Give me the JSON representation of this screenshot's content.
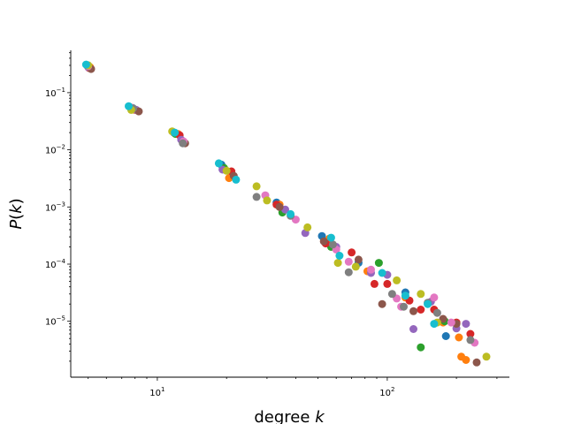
{
  "chart_data": {
    "type": "scatter",
    "title": "",
    "xlabel": "degree",
    "xlabel_var": "k",
    "ylabel_func": "P",
    "ylabel_var": "k",
    "x_scale": "log",
    "y_scale": "log",
    "xlim": [
      4.2,
      340
    ],
    "ylim": [
      1.05e-06,
      0.55
    ],
    "x_major_ticks": [
      {
        "value": 10,
        "base": "10",
        "exp": "1"
      },
      {
        "value": 100,
        "base": "10",
        "exp": "2"
      }
    ],
    "y_major_ticks": [
      {
        "value": 0.1,
        "base": "10",
        "exp": "−1"
      },
      {
        "value": 0.01,
        "base": "10",
        "exp": "−2"
      },
      {
        "value": 0.001,
        "base": "10",
        "exp": "−3"
      },
      {
        "value": 0.0001,
        "base": "10",
        "exp": "−4"
      },
      {
        "value": 1e-05,
        "base": "10",
        "exp": "−5"
      }
    ],
    "grid": false,
    "legend": "none",
    "series": [
      {
        "color": "#1f77b4",
        "points": [
          [
            5.0,
            0.29
          ],
          [
            7.8,
            0.054
          ],
          [
            11.8,
            0.02
          ],
          [
            19,
            0.0055
          ],
          [
            33,
            0.0012
          ],
          [
            52,
            0.00031
          ],
          [
            75,
            0.000105
          ],
          [
            120,
            3.2e-05
          ],
          [
            180,
            5.5e-06
          ]
        ]
      },
      {
        "color": "#ff7f0e",
        "points": [
          [
            5.1,
            0.28
          ],
          [
            8,
            0.05
          ],
          [
            12.3,
            0.019
          ],
          [
            20.5,
            0.0032
          ],
          [
            34,
            0.0011
          ],
          [
            56,
            0.00028
          ],
          [
            82,
            7.5e-05
          ],
          [
            120,
            2.6e-05
          ],
          [
            175,
            9.5e-06
          ],
          [
            205,
            5.2e-06
          ],
          [
            210,
            2.4e-06
          ],
          [
            220,
            2.1e-06
          ]
        ]
      },
      {
        "color": "#2ca02c",
        "points": [
          [
            5.0,
            0.3
          ],
          [
            7.6,
            0.056
          ],
          [
            12,
            0.019
          ],
          [
            19.5,
            0.0048
          ],
          [
            35,
            0.0008
          ],
          [
            57,
            0.0002
          ],
          [
            92,
            0.000105
          ],
          [
            140,
            3.5e-06
          ],
          [
            178,
            1e-05
          ]
        ]
      },
      {
        "color": "#d62728",
        "points": [
          [
            5.05,
            0.27
          ],
          [
            7.9,
            0.051
          ],
          [
            12.5,
            0.018
          ],
          [
            21,
            0.0042
          ],
          [
            33,
            0.0011
          ],
          [
            54,
            0.00023
          ],
          [
            70,
            0.00016
          ],
          [
            88,
            4.5e-05
          ],
          [
            100,
            4.5e-05
          ],
          [
            125,
            2.3e-05
          ],
          [
            140,
            1.6e-05
          ],
          [
            160,
            1.6e-05
          ],
          [
            200,
            9.5e-06
          ],
          [
            230,
            6e-06
          ]
        ]
      },
      {
        "color": "#9467bd",
        "points": [
          [
            5.0,
            0.28
          ],
          [
            8.1,
            0.05
          ],
          [
            12.7,
            0.015
          ],
          [
            19.2,
            0.0045
          ],
          [
            36,
            0.0009
          ],
          [
            44,
            0.00035
          ],
          [
            60,
            0.0002
          ],
          [
            85,
            7e-05
          ],
          [
            100,
            6.5e-05
          ],
          [
            130,
            7.3e-06
          ],
          [
            155,
            2.2e-05
          ],
          [
            200,
            7.5e-06
          ],
          [
            220,
            9e-06
          ]
        ]
      },
      {
        "color": "#8c564b",
        "points": [
          [
            5.15,
            0.26
          ],
          [
            8.3,
            0.047
          ],
          [
            13.2,
            0.013
          ],
          [
            21.5,
            0.0035
          ],
          [
            34,
            0.001
          ],
          [
            53,
            0.00025
          ],
          [
            75,
            0.00012
          ],
          [
            95,
            2e-05
          ],
          [
            130,
            1.5e-05
          ],
          [
            175,
            1.1e-05
          ],
          [
            200,
            9e-06
          ],
          [
            245,
            1.9e-06
          ]
        ]
      },
      {
        "color": "#e377c2",
        "points": [
          [
            5.0,
            0.29
          ],
          [
            7.7,
            0.055
          ],
          [
            13,
            0.014
          ],
          [
            29.5,
            0.0016
          ],
          [
            40,
            0.0006
          ],
          [
            60,
            0.00018
          ],
          [
            68,
            0.00011
          ],
          [
            85,
            8e-05
          ],
          [
            110,
            2.5e-05
          ],
          [
            115,
            1.8e-05
          ],
          [
            160,
            2.6e-05
          ],
          [
            190,
            9.5e-06
          ],
          [
            240,
            4.2e-06
          ]
        ]
      },
      {
        "color": "#7f7f7f",
        "points": [
          [
            4.95,
            0.3
          ],
          [
            7.85,
            0.053
          ],
          [
            12.9,
            0.013
          ],
          [
            27,
            0.0015
          ],
          [
            38,
            0.0007
          ],
          [
            58,
            0.00022
          ],
          [
            68,
            7.2e-05
          ],
          [
            105,
            3e-05
          ],
          [
            118,
            1.8e-05
          ],
          [
            150,
            2.1e-05
          ],
          [
            165,
            1.4e-05
          ],
          [
            230,
            4.7e-06
          ]
        ]
      },
      {
        "color": "#bcbd22",
        "points": [
          [
            5.0,
            0.3
          ],
          [
            7.7,
            0.05
          ],
          [
            11.6,
            0.021
          ],
          [
            20,
            0.0043
          ],
          [
            27,
            0.0023
          ],
          [
            30,
            0.0013
          ],
          [
            45,
            0.00044
          ],
          [
            61,
            0.000105
          ],
          [
            73,
            9e-05
          ],
          [
            110,
            5.2e-05
          ],
          [
            140,
            3e-05
          ],
          [
            165,
            9.5e-06
          ],
          [
            270,
            2.4e-06
          ]
        ]
      },
      {
        "color": "#17becf",
        "points": [
          [
            4.9,
            0.31
          ],
          [
            7.5,
            0.058
          ],
          [
            11.9,
            0.02
          ],
          [
            18.5,
            0.0058
          ],
          [
            22,
            0.003
          ],
          [
            38,
            0.00075
          ],
          [
            57,
            0.00029
          ],
          [
            62,
            0.00014
          ],
          [
            95,
            7e-05
          ],
          [
            120,
            2.8e-05
          ],
          [
            150,
            2e-05
          ],
          [
            160,
            9e-06
          ]
        ]
      }
    ]
  }
}
